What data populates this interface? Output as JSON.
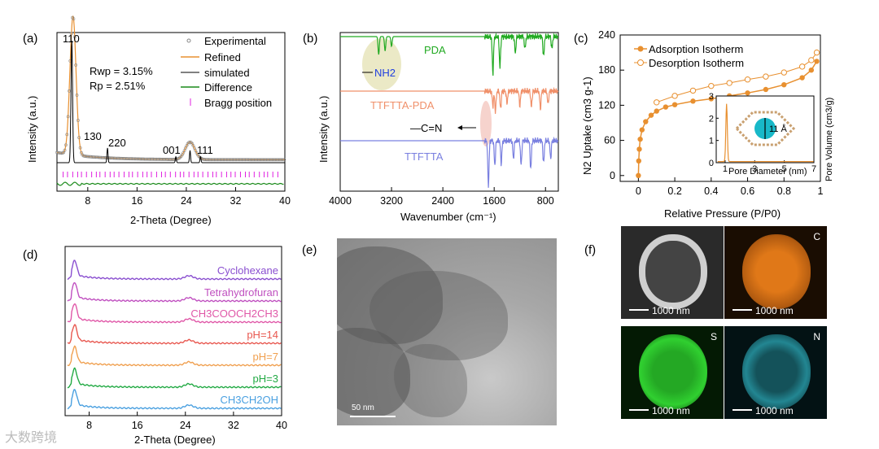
{
  "panels": {
    "a": "(a)",
    "b": "(b)",
    "c": "(c)",
    "d": "(d)",
    "e": "(e)",
    "f": "(f)"
  },
  "chart_data": [
    {
      "id": "a",
      "type": "line",
      "title": "",
      "xlabel": "2-Theta (Degree)",
      "ylabel": "Intensity (a.u.)",
      "xlim": [
        3,
        40
      ],
      "xticks": [
        8,
        16,
        24,
        32,
        40
      ],
      "legend": [
        "Experimental",
        "Refined",
        "simulated",
        "Difference",
        "Bragg position"
      ],
      "annotations": [
        "110",
        "130",
        "220",
        "001",
        "111"
      ],
      "rwp": "Rwp = 3.15%",
      "rp": "Rp = 2.51%",
      "peaks": [
        {
          "x": 5.4,
          "h": 1.0
        },
        {
          "x": 11.2,
          "h": 0.12
        },
        {
          "x": 22.3,
          "h": 0.05
        },
        {
          "x": 24.6,
          "h": 0.1
        },
        {
          "x": 26.3,
          "h": 0.05
        }
      ]
    },
    {
      "id": "b",
      "type": "line",
      "xlabel": "Wavenumber (cm⁻¹)",
      "ylabel": "Intensity (a.u.)",
      "xlim": [
        4000,
        600
      ],
      "xticks": [
        4000,
        3200,
        2400,
        1600,
        800
      ],
      "series": [
        {
          "name": "PDA",
          "color": "#22aa22"
        },
        {
          "name": "TTFTTA-PDA",
          "color": "#f0906a"
        },
        {
          "name": "TTFTTA",
          "color": "#7a80e0"
        }
      ],
      "annotations": [
        "NH2",
        "—C=N"
      ]
    },
    {
      "id": "c",
      "type": "scatter",
      "xlabel": "Relative Pressure (P/P0)",
      "ylabel": "N2 Uptake (cm3 g-1)",
      "xlim": [
        -0.1,
        1.0
      ],
      "ylim": [
        -10,
        240
      ],
      "xticks": [
        0.0,
        0.2,
        0.4,
        0.6,
        0.8,
        1.0
      ],
      "yticks": [
        0,
        60,
        120,
        180,
        240
      ],
      "legend": [
        "Adsorption Isotherm",
        "Desorption Isotherm"
      ],
      "adsorption": [
        [
          0.0,
          0
        ],
        [
          0.002,
          25
        ],
        [
          0.005,
          45
        ],
        [
          0.01,
          62
        ],
        [
          0.02,
          78
        ],
        [
          0.04,
          92
        ],
        [
          0.07,
          103
        ],
        [
          0.1,
          110
        ],
        [
          0.15,
          117
        ],
        [
          0.2,
          121
        ],
        [
          0.3,
          127
        ],
        [
          0.4,
          131
        ],
        [
          0.5,
          136
        ],
        [
          0.6,
          141
        ],
        [
          0.7,
          147
        ],
        [
          0.8,
          155
        ],
        [
          0.9,
          167
        ],
        [
          0.95,
          180
        ],
        [
          0.98,
          195
        ]
      ],
      "desorption": [
        [
          0.98,
          210
        ],
        [
          0.95,
          197
        ],
        [
          0.9,
          186
        ],
        [
          0.8,
          176
        ],
        [
          0.7,
          169
        ],
        [
          0.6,
          164
        ],
        [
          0.5,
          158
        ],
        [
          0.4,
          153
        ],
        [
          0.3,
          145
        ],
        [
          0.2,
          136
        ],
        [
          0.1,
          125
        ]
      ],
      "inset": {
        "xlabel": "Pore Diameter (nm)",
        "ylabel": "Pore Volume (cm3/g)",
        "xticks": [
          1,
          3,
          5,
          7
        ],
        "yticks": [
          0,
          1,
          2,
          3
        ],
        "label": "11 Å",
        "peak_x": 1.1,
        "peak_y": 2.6
      }
    },
    {
      "id": "d",
      "type": "line",
      "xlabel": "2-Theta (Degree)",
      "xlim": [
        4,
        40
      ],
      "xticks": [
        8,
        16,
        24,
        32,
        40
      ],
      "series": [
        {
          "name": "Cyclohexane",
          "color": "#8a4fd0"
        },
        {
          "name": "Tetrahydrofuran",
          "color": "#c050c0"
        },
        {
          "name": "CH3COOCH2CH3",
          "color": "#e058a8"
        },
        {
          "name": "pH=14",
          "color": "#e85850"
        },
        {
          "name": "pH=7",
          "color": "#f0a050"
        },
        {
          "name": "pH=3",
          "color": "#22aa44"
        },
        {
          "name": "CH3CH2OH",
          "color": "#4aa0e0"
        }
      ]
    }
  ],
  "tem": {
    "scale": "50 nm"
  },
  "maps": [
    {
      "element": "",
      "scale": "1000 nm",
      "color": "#dddddd"
    },
    {
      "element": "C",
      "scale": "1000 nm",
      "color": "#e07818"
    },
    {
      "element": "S",
      "scale": "1000 nm",
      "color": "#30d030"
    },
    {
      "element": "N",
      "scale": "1000 nm",
      "color": "#30b8c8"
    }
  ],
  "watermark": "大数跨境",
  "colors": {
    "orange": "#e89030",
    "green": "#1a8a1a",
    "magenta": "#e020e0",
    "blue": "#2040e0"
  }
}
